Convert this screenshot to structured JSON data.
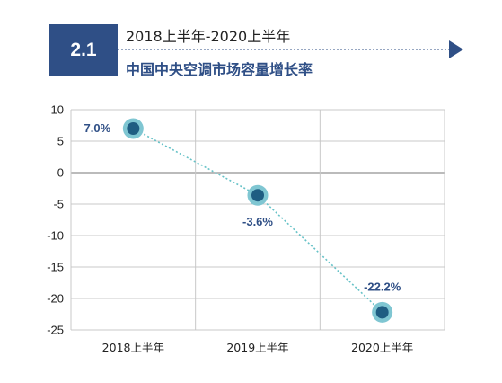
{
  "header": {
    "badge": "2.1",
    "subtitle": "2018上半年-2020上半年",
    "title": "中国中央空调市场容量增长率"
  },
  "colors": {
    "accent": "#2f4f86",
    "marker_inner": "#1f5d82",
    "marker_outer": "#7fc6d2",
    "trend_line": "#66c2c7"
  },
  "chart_data": {
    "type": "line",
    "categories": [
      "2018上半年",
      "2019上半年",
      "2020上半年"
    ],
    "series": [
      {
        "values": [
          7.0,
          -3.6,
          -22.2
        ],
        "labels": [
          "7.0%",
          "-3.6%",
          "-22.2%"
        ]
      }
    ],
    "title": "中国中央空调市场容量增长率",
    "xlabel": "",
    "ylabel": "",
    "ylim": [
      -25,
      10
    ],
    "yticks": [
      10,
      5,
      0,
      -5,
      -10,
      -15,
      -20,
      -25
    ],
    "grid": true,
    "legend": "none"
  }
}
